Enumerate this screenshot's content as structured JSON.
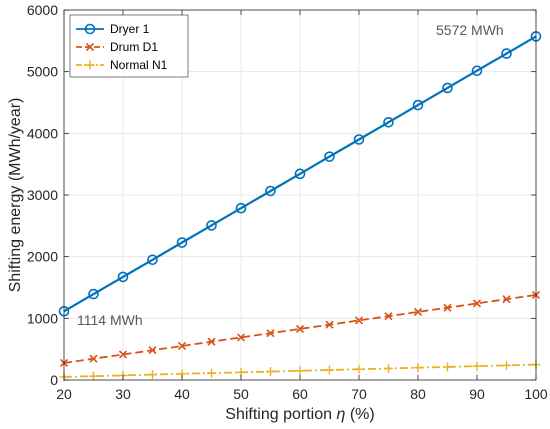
{
  "chart_data": {
    "type": "line",
    "xlabel": "Shifting portion",
    "xlabel_symbol": "η",
    "xlabel_unit": "(%)",
    "ylabel": "Shifting energy (MWh/year)",
    "xlim": [
      20,
      100
    ],
    "ylim": [
      0,
      6000
    ],
    "xticks": [
      20,
      30,
      40,
      50,
      60,
      70,
      80,
      90,
      100
    ],
    "yticks": [
      0,
      1000,
      2000,
      3000,
      4000,
      5000,
      6000
    ],
    "grid": true,
    "legend_position": "top-left",
    "x": [
      20,
      25,
      30,
      35,
      40,
      45,
      50,
      55,
      60,
      65,
      70,
      75,
      80,
      85,
      90,
      95,
      100
    ],
    "series": [
      {
        "name": "Dryer 1",
        "color": "#0072BD",
        "marker": "circle",
        "line": "solid",
        "values": [
          1114,
          1393,
          1672,
          1950,
          2229,
          2507,
          2786,
          3065,
          3343,
          3622,
          3900,
          4179,
          4458,
          4736,
          5015,
          5293,
          5572
        ]
      },
      {
        "name": "Drum D1",
        "color": "#D95319",
        "marker": "x",
        "line": "dashed",
        "values": [
          276,
          345,
          414,
          483,
          552,
          621,
          690,
          759,
          828,
          897,
          966,
          1035,
          1104,
          1173,
          1242,
          1311,
          1380
        ]
      },
      {
        "name": "Normal N1",
        "color": "#EDB120",
        "marker": "plus",
        "line": "dashdot",
        "values": [
          50,
          62,
          75,
          87,
          100,
          112,
          125,
          137,
          150,
          162,
          175,
          187,
          200,
          212,
          225,
          237,
          250
        ]
      }
    ],
    "annotations": [
      {
        "text": "5572 MWh",
        "x": 100,
        "y": 5572
      },
      {
        "text": "1114 MWh",
        "x": 20,
        "y": 1114
      }
    ]
  }
}
